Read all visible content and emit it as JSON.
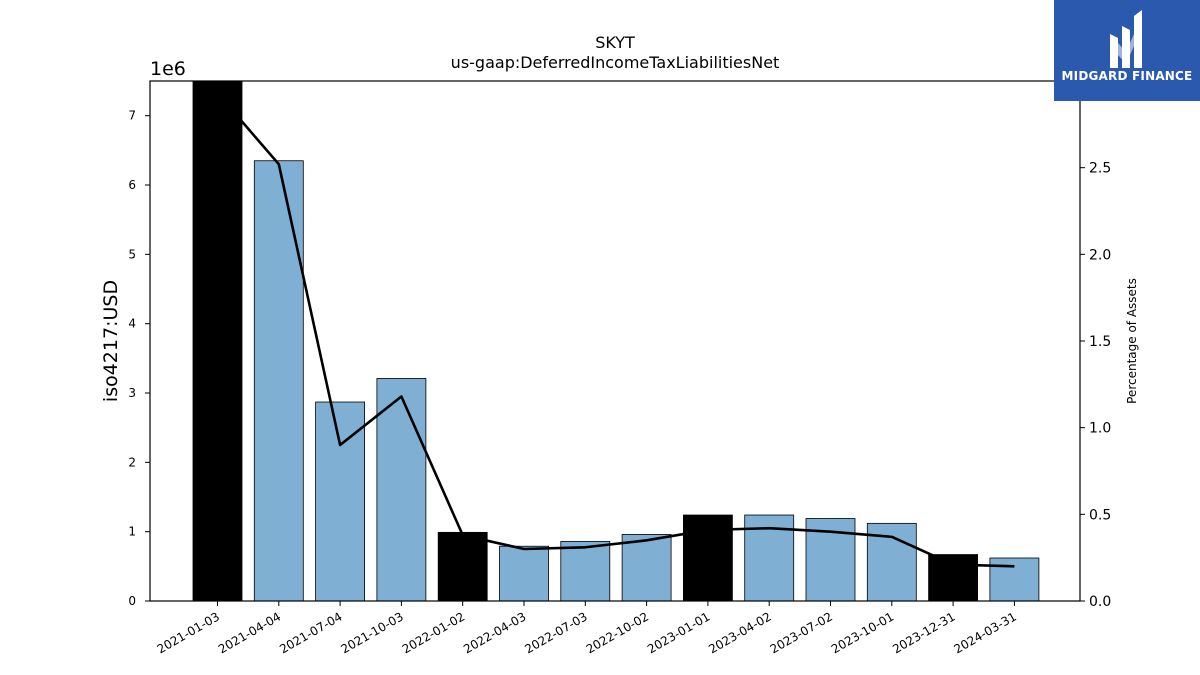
{
  "chart_data": {
    "type": "bar",
    "title": "SKYT",
    "subtitle": "us-gaap:DeferredIncomeTaxLiabilitiesNet",
    "ylabel": "iso4217:USD",
    "y_offset_label": "1e6",
    "y2label": "Percentage of Assets",
    "ylim": [
      0,
      7500000
    ],
    "y2lim": [
      0,
      3.0
    ],
    "yticks": [
      "0",
      "1",
      "2",
      "3",
      "4",
      "5",
      "6",
      "7"
    ],
    "y2ticks": [
      "0.0",
      "0.5",
      "1.0",
      "1.5",
      "2.0",
      "2.5"
    ],
    "categories": [
      "2021-01-03",
      "2021-04-04",
      "2021-07-04",
      "2021-10-03",
      "2022-01-02",
      "2022-04-03",
      "2022-07-03",
      "2022-10-02",
      "2023-01-01",
      "2023-04-02",
      "2023-07-02",
      "2023-10-01",
      "2023-12-31",
      "2024-03-31"
    ],
    "values": [
      7500000,
      6350000,
      2870000,
      3210000,
      990000,
      790000,
      860000,
      960000,
      1240000,
      1240000,
      1190000,
      1120000,
      670000,
      620000
    ],
    "highlight": [
      true,
      false,
      false,
      false,
      true,
      false,
      false,
      false,
      true,
      false,
      false,
      false,
      true,
      false
    ],
    "line_values": [
      2.93,
      2.52,
      0.9,
      1.18,
      0.38,
      0.3,
      0.31,
      0.35,
      0.41,
      0.42,
      0.4,
      0.37,
      0.21,
      0.2
    ],
    "colors": {
      "bar": "#7fb0d3",
      "highlight": "#000000",
      "line": "#000000"
    }
  },
  "logo": {
    "text": "MIDGARD FINANCE",
    "icon": "midgard-logo-icon"
  }
}
